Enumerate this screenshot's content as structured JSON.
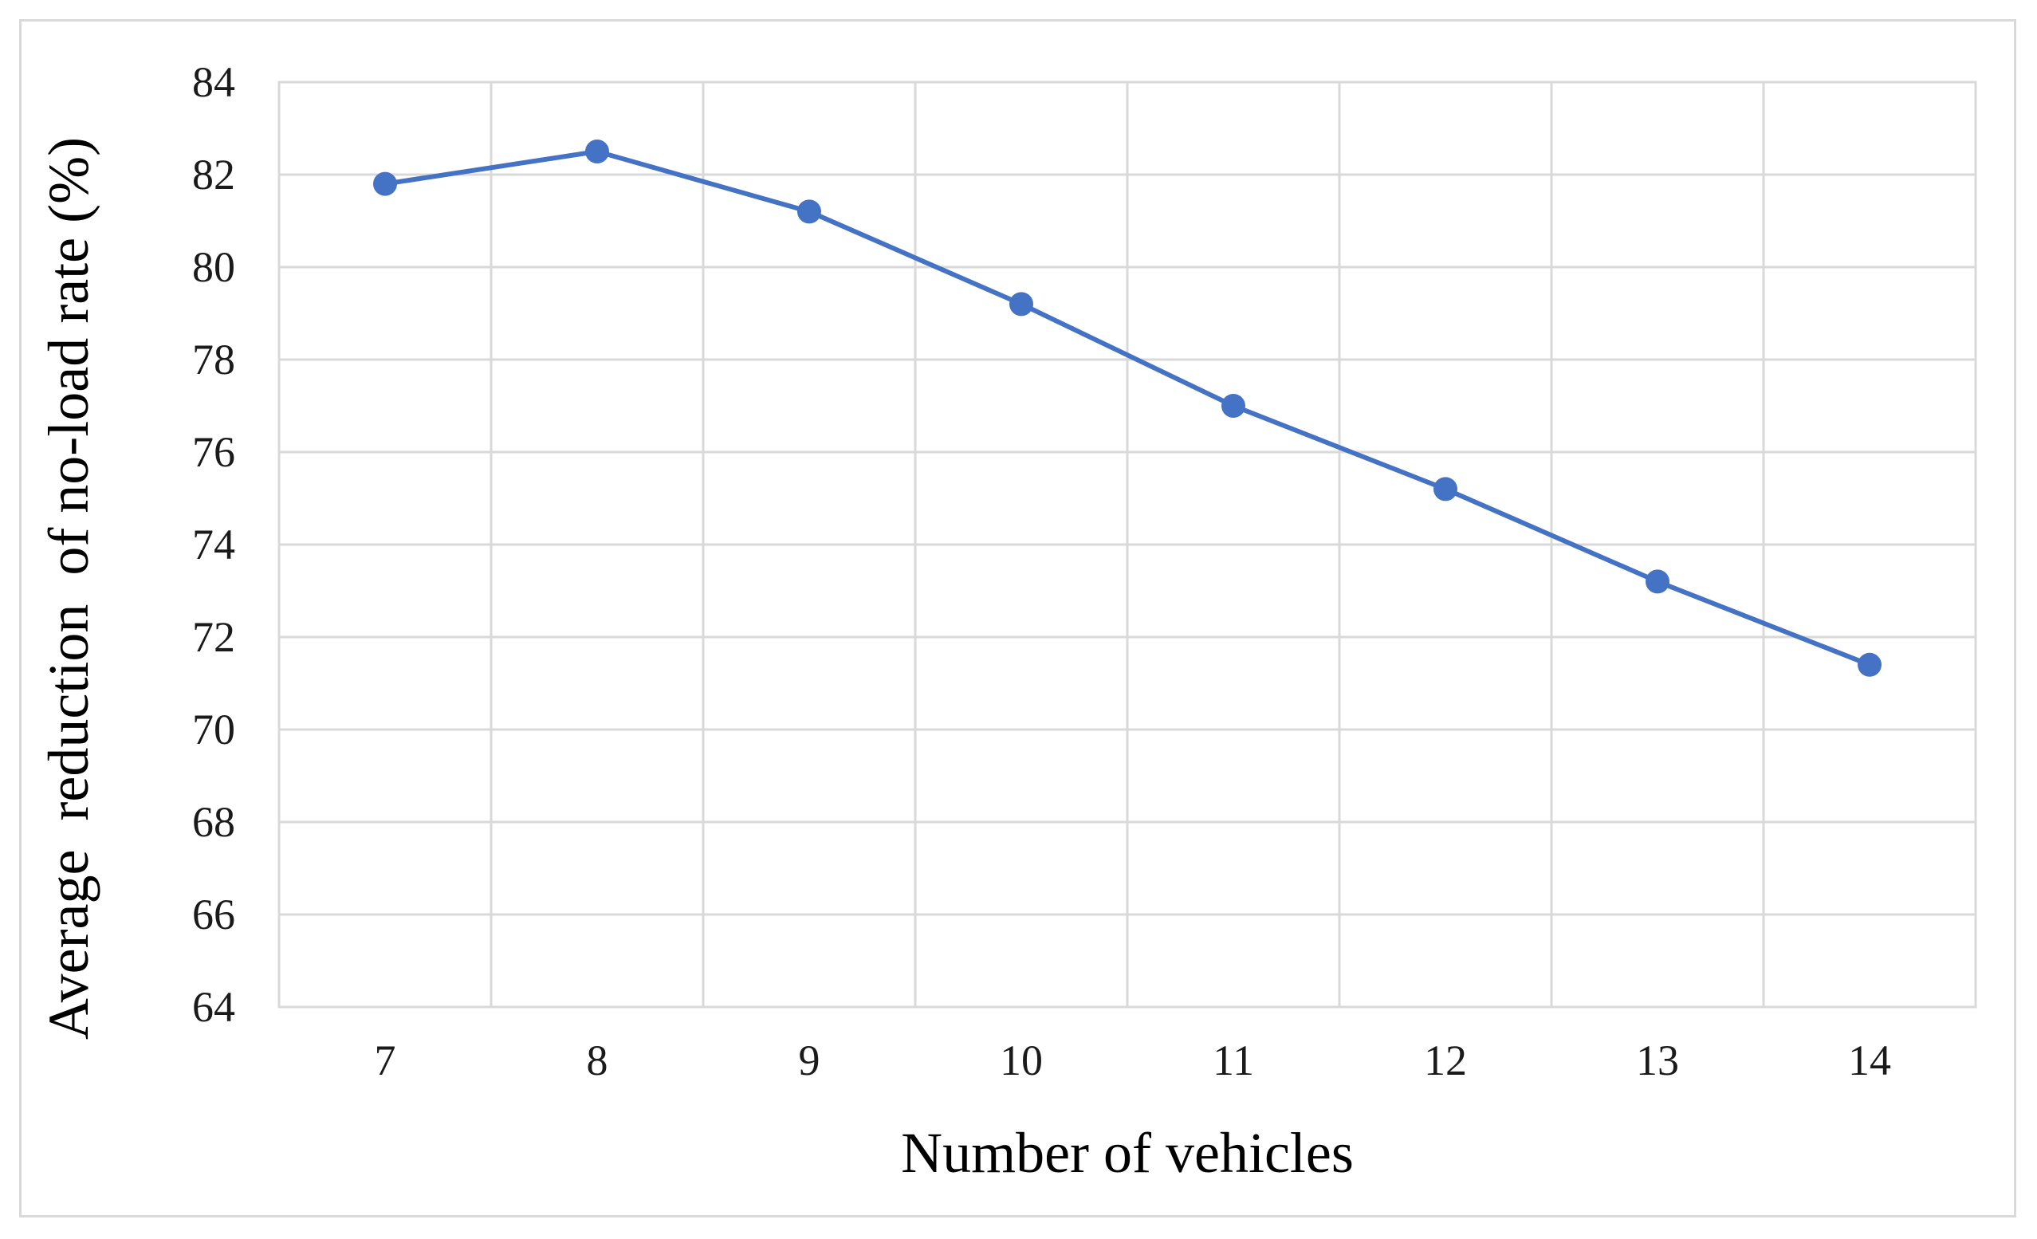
{
  "chart_data": {
    "type": "line",
    "title": "",
    "xlabel": "Number of vehicles",
    "ylabel": "Average  reduction  of no-load rate (%)",
    "categories": [
      "7",
      "8",
      "9",
      "10",
      "11",
      "12",
      "13",
      "14"
    ],
    "x": [
      7,
      8,
      9,
      10,
      11,
      12,
      13,
      14
    ],
    "series": [
      {
        "values": [
          81.8,
          82.5,
          81.2,
          79.2,
          77.0,
          75.2,
          73.2,
          71.4
        ],
        "color": "#4472c4"
      }
    ],
    "ylim": [
      64,
      84
    ],
    "yticks": [
      "64",
      "66",
      "68",
      "70",
      "72",
      "74",
      "76",
      "78",
      "80",
      "82",
      "84"
    ],
    "grid": true,
    "legend": "none"
  }
}
